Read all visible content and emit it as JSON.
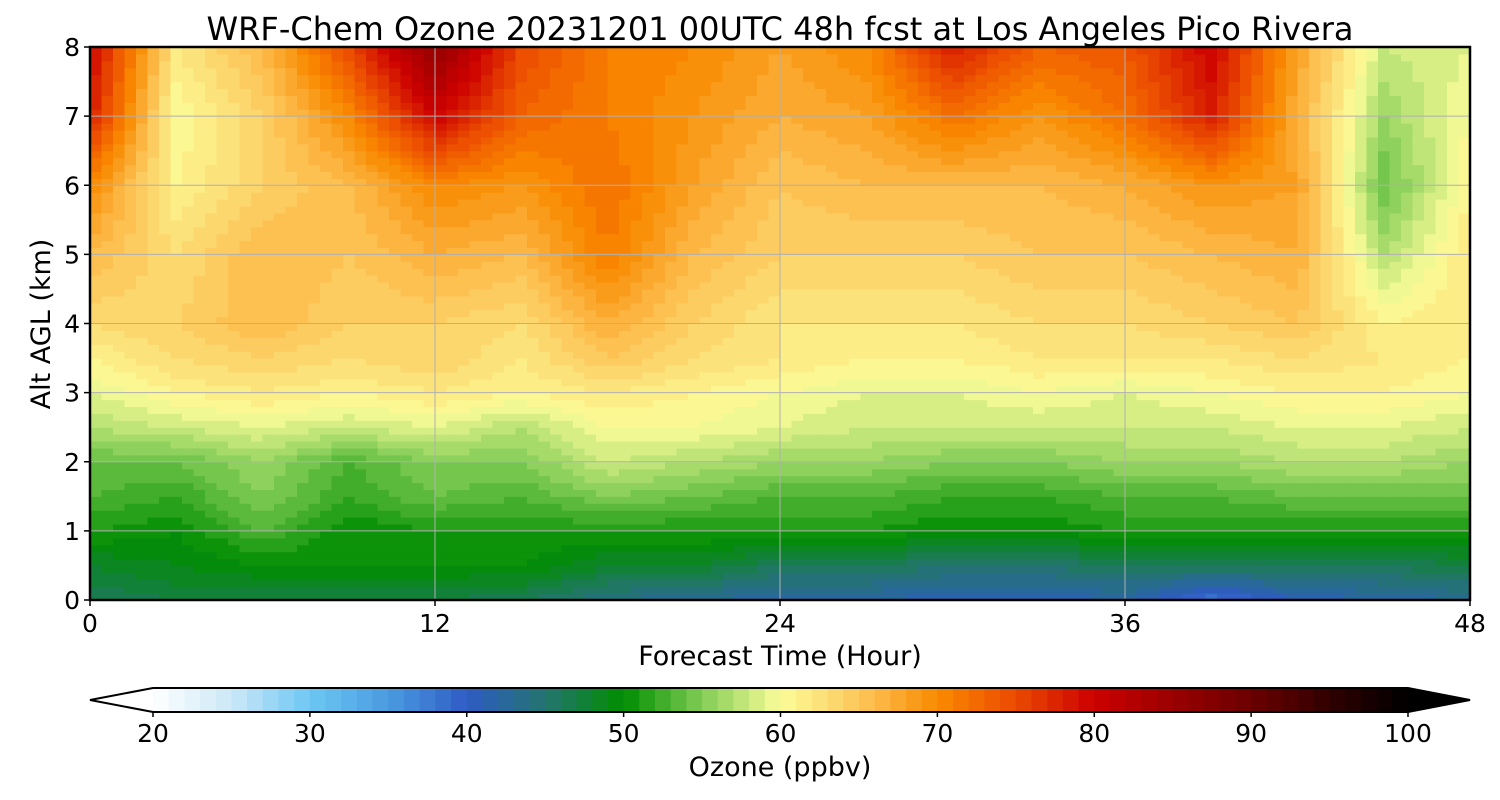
{
  "chart_data": {
    "type": "heatmap",
    "title": "WRF-Chem Ozone  20231201 00UTC 48h fcst at Los Angeles Pico Rivera",
    "xlabel": "Forecast Time (Hour)",
    "ylabel": "Alt AGL (km)",
    "xlim": [
      0,
      48
    ],
    "ylim": [
      0,
      8
    ],
    "xticks": [
      0,
      12,
      24,
      36,
      48
    ],
    "yticks": [
      0,
      1,
      2,
      3,
      4,
      5,
      6,
      7,
      8
    ],
    "grid": true,
    "x": [
      0,
      3,
      6,
      9,
      12,
      15,
      18,
      21,
      24,
      27,
      30,
      33,
      36,
      39,
      42,
      45,
      48
    ],
    "y": [
      0,
      0.5,
      1,
      1.5,
      2,
      2.5,
      3,
      3.5,
      4,
      5,
      6,
      7,
      8
    ],
    "z": [
      [
        46,
        47,
        47,
        47,
        47,
        46,
        44,
        43,
        42,
        42,
        41,
        41,
        42,
        38,
        41,
        42,
        43
      ],
      [
        48,
        49,
        50,
        50,
        50,
        50,
        48,
        48,
        46,
        46,
        45,
        45,
        46,
        46,
        46,
        46,
        47
      ],
      [
        51,
        50,
        53,
        50,
        51,
        51,
        51,
        51,
        51,
        51,
        50,
        50,
        51,
        51,
        51,
        51,
        51
      ],
      [
        53,
        52,
        55,
        52,
        54,
        53,
        55,
        54,
        53,
        53,
        52,
        52,
        53,
        53,
        54,
        54,
        54
      ],
      [
        54,
        54,
        56,
        53,
        55,
        55,
        58,
        57,
        56,
        56,
        55,
        55,
        56,
        56,
        57,
        57,
        56
      ],
      [
        57,
        58,
        59,
        58,
        59,
        57,
        60,
        60,
        59,
        58,
        58,
        58,
        58,
        58,
        59,
        59,
        58
      ],
      [
        59,
        61,
        62,
        61,
        62,
        61,
        62,
        61,
        60,
        59,
        59,
        60,
        59,
        60,
        61,
        61,
        60
      ],
      [
        61,
        63,
        64,
        63,
        64,
        62,
        65,
        63,
        62,
        61,
        61,
        62,
        62,
        62,
        63,
        62,
        61
      ],
      [
        63,
        64,
        66,
        64,
        64,
        63,
        67,
        64,
        62,
        62,
        62,
        63,
        63,
        64,
        65,
        61,
        62
      ],
      [
        66,
        63,
        66,
        65,
        67,
        66,
        71,
        66,
        64,
        64,
        64,
        65,
        65,
        66,
        67,
        57,
        62
      ],
      [
        70,
        61,
        64,
        66,
        70,
        69,
        72,
        68,
        65,
        66,
        66,
        66,
        67,
        69,
        68,
        54,
        61
      ],
      [
        78,
        60,
        64,
        70,
        80,
        73,
        71,
        69,
        67,
        68,
        72,
        69,
        72,
        78,
        67,
        56,
        60
      ],
      [
        80,
        62,
        66,
        75,
        86,
        75,
        71,
        70,
        68,
        70,
        78,
        73,
        74,
        80,
        68,
        58,
        59
      ]
    ],
    "colorbar": {
      "label": "Ozone  (ppbv)",
      "range": [
        20,
        100
      ],
      "ticks": [
        20,
        30,
        40,
        50,
        60,
        70,
        80,
        90,
        100
      ],
      "extend": "both",
      "stops": [
        {
          "v": 20,
          "c": "#ffffff"
        },
        {
          "v": 25,
          "c": "#cbe8f7"
        },
        {
          "v": 30,
          "c": "#6cc7f3"
        },
        {
          "v": 35,
          "c": "#4a9be0"
        },
        {
          "v": 40,
          "c": "#2f5cc4"
        },
        {
          "v": 45,
          "c": "#23746f"
        },
        {
          "v": 50,
          "c": "#008d00"
        },
        {
          "v": 55,
          "c": "#82cc55"
        },
        {
          "v": 60,
          "c": "#fbfd9a"
        },
        {
          "v": 65,
          "c": "#fdc75b"
        },
        {
          "v": 70,
          "c": "#f98a00"
        },
        {
          "v": 75,
          "c": "#ea4a00"
        },
        {
          "v": 80,
          "c": "#cc0000"
        },
        {
          "v": 85,
          "c": "#9a0000"
        },
        {
          "v": 90,
          "c": "#6b0000"
        },
        {
          "v": 95,
          "c": "#300000"
        },
        {
          "v": 100,
          "c": "#000000"
        }
      ]
    }
  }
}
